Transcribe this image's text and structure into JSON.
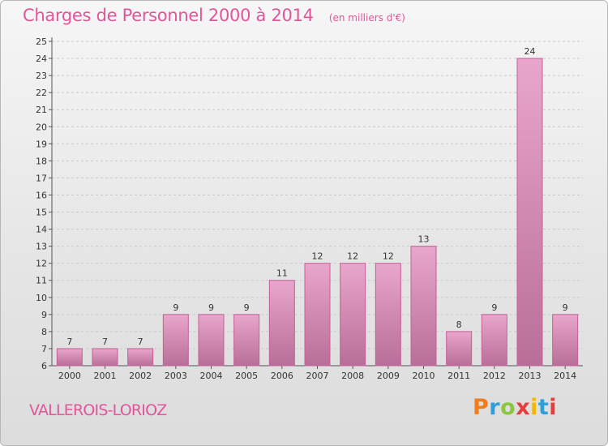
{
  "title": "Charges de Personnel 2000 à 2014",
  "subtitle": "(en milliers d'€)",
  "commune": "VALLEROIS-LORIOZ",
  "logo": {
    "text": "Proxiti",
    "letters": [
      "P",
      "r",
      "o",
      "x",
      "i",
      "t",
      "i"
    ]
  },
  "colors": {
    "accent": "#e0569a",
    "bar_top": "#e9a6cc",
    "bar_bottom": "#b86e98",
    "bar_edge": "#c45f98"
  },
  "chart_data": {
    "type": "bar",
    "categories": [
      "2000",
      "2001",
      "2002",
      "2003",
      "2004",
      "2005",
      "2006",
      "2007",
      "2008",
      "2009",
      "2010",
      "2011",
      "2012",
      "2013",
      "2014"
    ],
    "values": [
      7,
      7,
      7,
      9,
      9,
      9,
      11,
      12,
      12,
      12,
      13,
      8,
      9,
      24,
      9
    ],
    "ylim": [
      6,
      25
    ],
    "yticks": [
      6,
      7,
      8,
      9,
      10,
      11,
      12,
      13,
      14,
      15,
      16,
      17,
      18,
      19,
      20,
      21,
      22,
      23,
      24,
      25
    ],
    "grid": "horizontal dashed",
    "xlabel": "",
    "ylabel": ""
  }
}
